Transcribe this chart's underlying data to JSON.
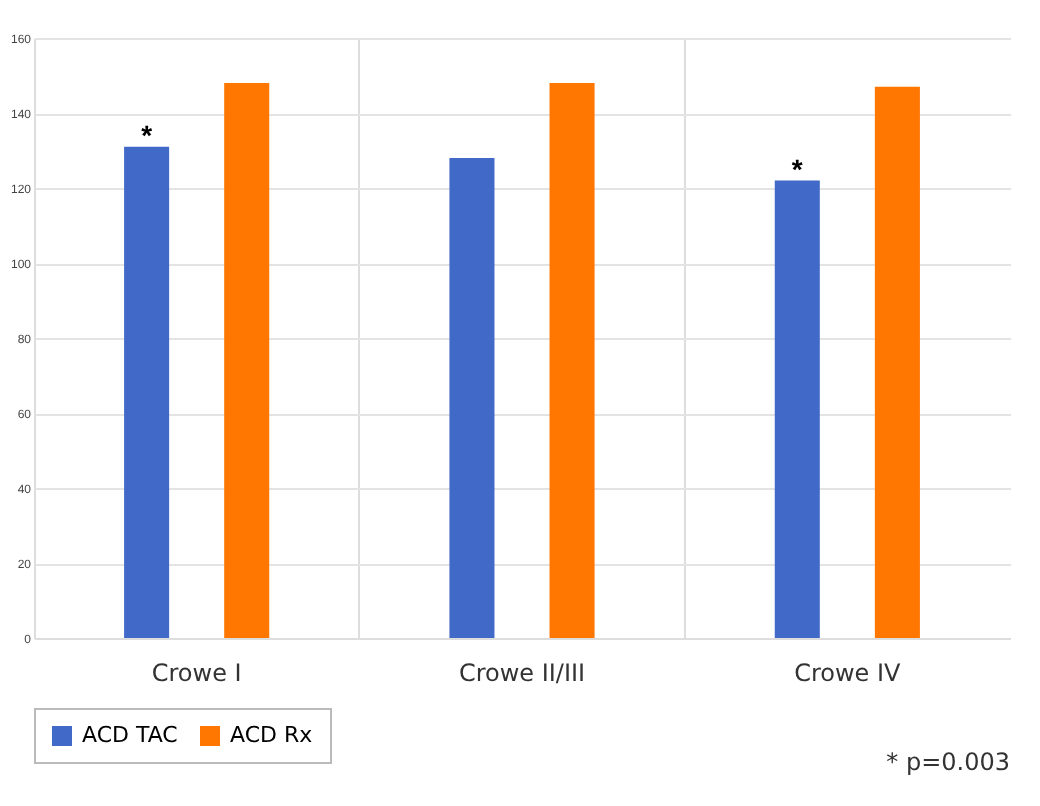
{
  "chart_data": {
    "type": "bar",
    "categories": [
      "Crowe I",
      "Crowe II/III",
      "Crowe IV"
    ],
    "series": [
      {
        "name": "ACD TAC",
        "color": "#4169c8",
        "values": [
          131,
          128,
          122
        ]
      },
      {
        "name": "ACD Rx",
        "color": "#ff7700",
        "values": [
          148,
          148,
          147
        ]
      }
    ],
    "ylim": [
      0,
      160
    ],
    "yticks": [
      0,
      20,
      40,
      60,
      80,
      100,
      120,
      140,
      160
    ],
    "grid": true,
    "legend": "bottom",
    "annotations": [
      "*",
      "*",
      "* p=0.003"
    ]
  }
}
